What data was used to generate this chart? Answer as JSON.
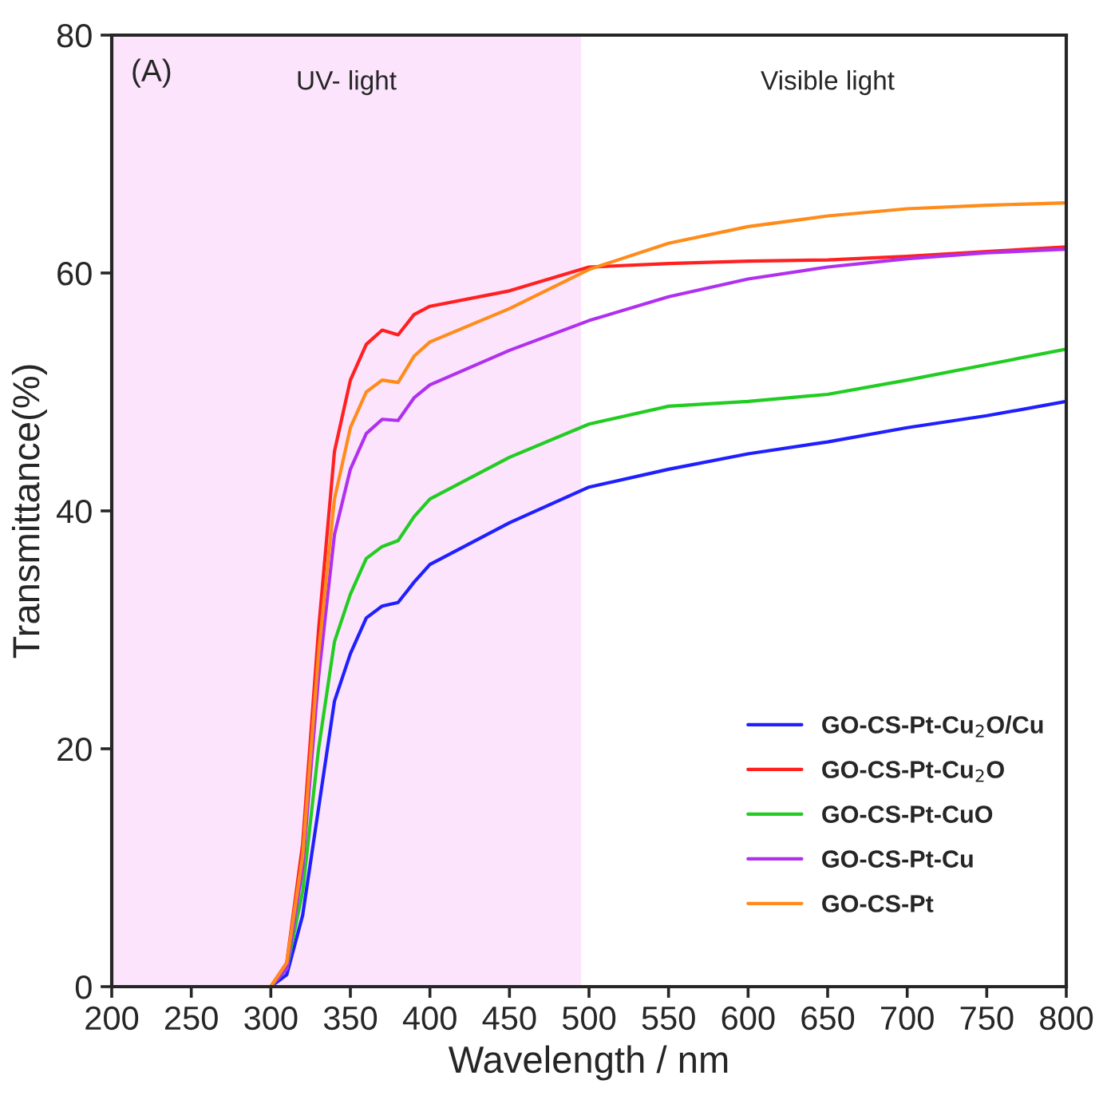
{
  "chart_data": {
    "type": "line",
    "xlabel": "Wavelength / nm",
    "ylabel": "Transmittance(%)",
    "x": [
      200,
      290,
      300,
      310,
      320,
      330,
      340,
      350,
      360,
      370,
      380,
      390,
      400,
      450,
      500,
      550,
      600,
      650,
      700,
      750,
      800
    ],
    "series": [
      {
        "name": "GO-CS-Pt-Cu$_{2}$O/Cu",
        "color": "#1f1fff",
        "values": [
          null,
          null,
          0,
          1,
          6,
          15,
          24,
          28,
          31,
          32,
          32.3,
          34,
          35.5,
          39,
          42,
          43.5,
          44.8,
          45.8,
          47,
          48,
          49.2
        ]
      },
      {
        "name": "GO-CS-Pt-Cu$_{2}$O",
        "color": "#ff2020",
        "values": [
          null,
          null,
          0,
          2,
          12,
          30,
          45,
          51,
          54,
          55.2,
          54.8,
          56.5,
          57.2,
          58.5,
          60.5,
          60.8,
          61,
          61.1,
          61.4,
          61.8,
          62.2
        ]
      },
      {
        "name": "GO-CS-Pt-CuO",
        "color": "#22cc22",
        "values": [
          null,
          null,
          0,
          1.5,
          8,
          20,
          29,
          33,
          36,
          37,
          37.5,
          39.5,
          41,
          44.5,
          47.3,
          48.8,
          49.2,
          49.8,
          51,
          52.3,
          53.6
        ]
      },
      {
        "name": "GO-CS-Pt-Cu",
        "color": "#b030f0",
        "values": [
          null,
          null,
          0,
          1.5,
          10,
          26,
          38,
          43.5,
          46.5,
          47.7,
          47.6,
          49.5,
          50.6,
          53.5,
          56,
          58,
          59.5,
          60.5,
          61.2,
          61.7,
          62
        ]
      },
      {
        "name": "GO-CS-Pt",
        "color": "#ff8c1a",
        "values": [
          0,
          0,
          0,
          2,
          11,
          28,
          41,
          47,
          50,
          51,
          50.8,
          53,
          54.2,
          57,
          60.3,
          62.5,
          63.9,
          64.8,
          65.4,
          65.7,
          65.9
        ]
      }
    ],
    "xlim": [
      200,
      800
    ],
    "ylim": [
      0,
      80
    ],
    "xticks": [
      200,
      250,
      300,
      350,
      400,
      450,
      500,
      550,
      600,
      650,
      700,
      750,
      800
    ],
    "yticks": [
      0,
      20,
      40,
      60,
      80
    ],
    "bands": [
      {
        "axis": "x",
        "from": 200,
        "to": 495,
        "label": "UV- light",
        "color": "#fce4fc"
      }
    ],
    "annotations": [
      "(A)",
      "Visible light"
    ],
    "legend": "bottom right",
    "grid": false,
    "line_style": "solid",
    "marker": "none"
  }
}
